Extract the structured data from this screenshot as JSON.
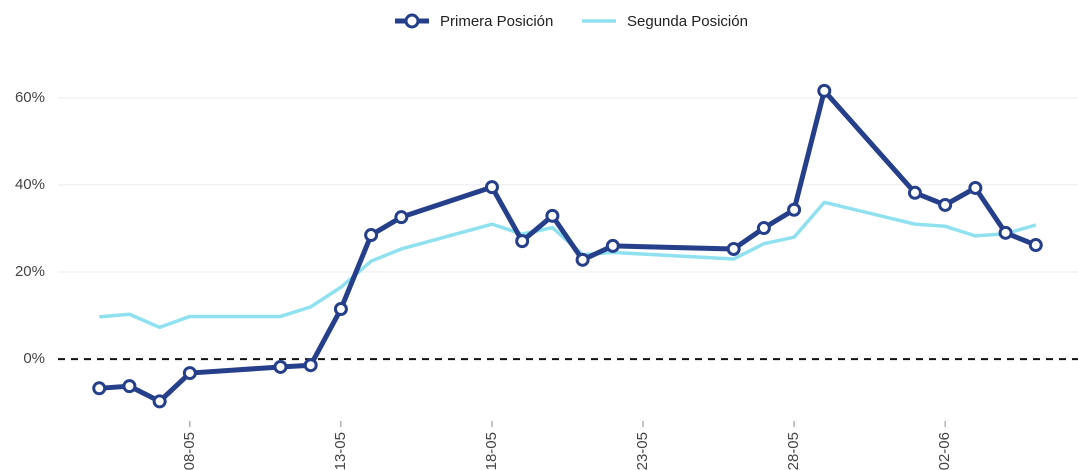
{
  "chart_data": {
    "type": "line",
    "x": [
      "05-05",
      "06-05",
      "07-05",
      "08-05",
      "11-05",
      "12-05",
      "13-05",
      "14-05",
      "15-05",
      "18-05",
      "19-05",
      "20-05",
      "21-05",
      "22-05",
      "26-05",
      "27-05",
      "28-05",
      "29-05",
      "01-06",
      "02-06",
      "03-06",
      "04-06",
      "05-06"
    ],
    "series": [
      {
        "name": "Primera Posición",
        "color": "#253f8a",
        "markers": true,
        "values": [
          -6.7,
          -6.2,
          -9.7,
          -3.2,
          -1.8,
          -1.4,
          11.5,
          28.5,
          32.6,
          39.5,
          27.1,
          32.9,
          22.8,
          26,
          25.3,
          30.1,
          34.3,
          61.6,
          38.2,
          35.4,
          39.3,
          29,
          26.2
        ]
      },
      {
        "name": "Segunda Posición",
        "color": "#8fe1ef",
        "markers": false,
        "values": [
          9.7,
          10.3,
          7.3,
          9.8,
          9.8,
          12,
          16.5,
          22.5,
          25.3,
          31,
          28.7,
          30.2,
          24,
          24.5,
          23,
          26.5,
          28,
          36,
          31,
          30.5,
          28.3,
          28.8,
          30.8
        ]
      }
    ],
    "xlim": [
      "04-05",
      "06-06"
    ],
    "xticks": [
      "08-05",
      "13-05",
      "18-05",
      "23-05",
      "28-05",
      "02-06"
    ],
    "ylim": [
      -25,
      68
    ],
    "yticks": [
      {
        "value": 0,
        "label": "0%"
      },
      {
        "value": 20,
        "label": "20%"
      },
      {
        "value": 40,
        "label": "40%"
      },
      {
        "value": 60,
        "label": "60%"
      }
    ],
    "grid": true,
    "zero_line": true,
    "legend": "top"
  }
}
